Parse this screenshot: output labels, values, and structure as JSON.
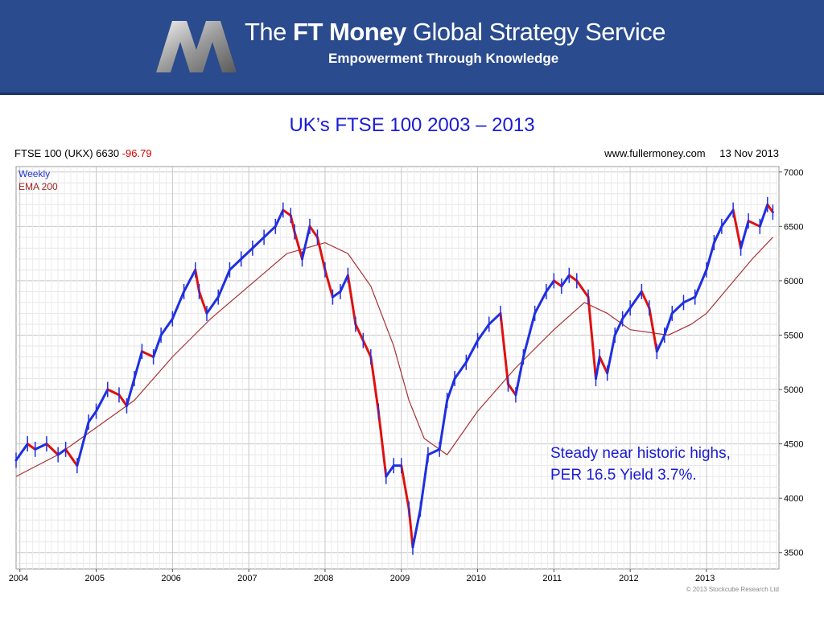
{
  "header": {
    "brand_prefix": "The",
    "brand_bold": "FT Money",
    "brand_suffix": "Global Strategy Service",
    "tagline": "Empowerment Through Knowledge"
  },
  "slide_title": "UK’s FTSE 100  2003 – 2013",
  "chart_header": {
    "instrument": "FTSE 100 (UKX) 6630",
    "change": "-96.79",
    "source": "www.fullermoney.com",
    "date": "13 Nov 2013"
  },
  "legend": {
    "weekly": "Weekly",
    "ema": "EMA 200"
  },
  "annotation": {
    "line1": "Steady near historic highs,",
    "line2": "PER 16.5 Yield 3.7%."
  },
  "copyright": "© 2013 Stockcube Research Ltd",
  "colors": {
    "up": "#1f2fe0",
    "down": "#e01010",
    "ema": "#a83232",
    "banner": "#2a4b8d",
    "title": "#1b1bd6"
  },
  "chart_data": {
    "type": "line",
    "title": "UK’s FTSE 100  2003 – 2013",
    "ylim": [
      3350,
      7050
    ],
    "xlim": [
      2003.95,
      2013.95
    ],
    "y_ticks": [
      3500,
      4000,
      4500,
      5000,
      5500,
      6000,
      6500,
      7000
    ],
    "x_ticks": [
      "2004",
      "2005",
      "2006",
      "2007",
      "2008",
      "2009",
      "2010",
      "2011",
      "2012",
      "2013"
    ],
    "grid": true,
    "series": [
      {
        "name": "Weekly",
        "x": [
          2003.95,
          2004.1,
          2004.2,
          2004.35,
          2004.5,
          2004.6,
          2004.75,
          2004.9,
          2005.0,
          2005.15,
          2005.3,
          2005.4,
          2005.5,
          2005.6,
          2005.75,
          2005.85,
          2006.0,
          2006.15,
          2006.3,
          2006.35,
          2006.45,
          2006.6,
          2006.75,
          2006.9,
          2007.05,
          2007.2,
          2007.35,
          2007.45,
          2007.55,
          2007.6,
          2007.7,
          2007.8,
          2007.9,
          2008.0,
          2008.1,
          2008.2,
          2008.3,
          2008.4,
          2008.5,
          2008.6,
          2008.7,
          2008.8,
          2008.9,
          2009.0,
          2009.1,
          2009.15,
          2009.25,
          2009.35,
          2009.5,
          2009.6,
          2009.7,
          2009.85,
          2010.0,
          2010.15,
          2010.3,
          2010.4,
          2010.5,
          2010.6,
          2010.75,
          2010.9,
          2011.0,
          2011.1,
          2011.2,
          2011.3,
          2011.45,
          2011.55,
          2011.6,
          2011.7,
          2011.8,
          2011.9,
          2012.0,
          2012.15,
          2012.25,
          2012.35,
          2012.45,
          2012.55,
          2012.7,
          2012.85,
          2013.0,
          2013.1,
          2013.2,
          2013.35,
          2013.45,
          2013.55,
          2013.7,
          2013.8,
          2013.87
        ],
        "y": [
          4350,
          4500,
          4450,
          4500,
          4400,
          4450,
          4300,
          4700,
          4800,
          5000,
          4950,
          4850,
          5100,
          5350,
          5300,
          5500,
          5650,
          5900,
          6100,
          5900,
          5700,
          5850,
          6100,
          6200,
          6300,
          6400,
          6500,
          6650,
          6600,
          6450,
          6200,
          6500,
          6400,
          6100,
          5850,
          5900,
          6050,
          5600,
          5450,
          5300,
          4800,
          4200,
          4300,
          4300,
          3900,
          3550,
          3900,
          4400,
          4450,
          4900,
          5100,
          5250,
          5450,
          5600,
          5700,
          5050,
          4950,
          5300,
          5700,
          5900,
          6000,
          5950,
          6050,
          6000,
          5850,
          5100,
          5300,
          5150,
          5500,
          5650,
          5750,
          5900,
          5750,
          5350,
          5500,
          5700,
          5800,
          5850,
          6100,
          6350,
          6500,
          6650,
          6300,
          6550,
          6500,
          6700,
          6630
        ]
      },
      {
        "name": "EMA 200",
        "x": [
          2003.95,
          2004.5,
          2005.0,
          2005.5,
          2006.0,
          2006.5,
          2007.0,
          2007.5,
          2008.0,
          2008.3,
          2008.6,
          2008.9,
          2009.1,
          2009.3,
          2009.6,
          2010.0,
          2010.5,
          2011.0,
          2011.4,
          2011.7,
          2012.0,
          2012.5,
          2012.8,
          2013.0,
          2013.3,
          2013.6,
          2013.87
        ],
        "y": [
          4200,
          4400,
          4650,
          4900,
          5300,
          5650,
          5950,
          6250,
          6350,
          6250,
          5950,
          5400,
          4900,
          4550,
          4400,
          4800,
          5200,
          5550,
          5800,
          5700,
          5550,
          5500,
          5600,
          5700,
          5950,
          6200,
          6400
        ]
      }
    ]
  }
}
